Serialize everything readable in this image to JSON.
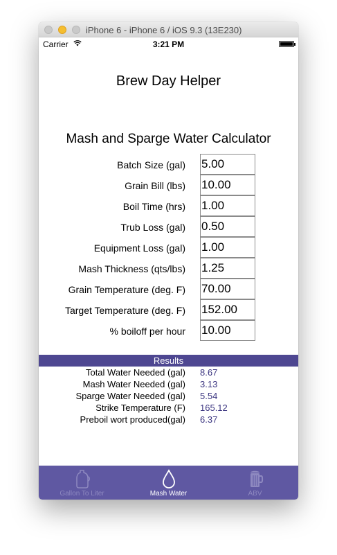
{
  "window": {
    "title": "iPhone 6 - iPhone 6 / iOS 9.3 (13E230)"
  },
  "status_bar": {
    "carrier": "Carrier",
    "time": "3:21 PM"
  },
  "app": {
    "title": "Brew Day Helper"
  },
  "calculator": {
    "title": "Mash and Sparge Water Calculator",
    "fields": [
      {
        "label": "Batch Size (gal)",
        "value": "5.00"
      },
      {
        "label": "Grain Bill (lbs)",
        "value": "10.00"
      },
      {
        "label": "Boil Time (hrs)",
        "value": "1.00"
      },
      {
        "label": "Trub Loss (gal)",
        "value": "0.50"
      },
      {
        "label": "Equipment Loss (gal)",
        "value": "1.00"
      },
      {
        "label": "Mash Thickness (qts/lbs)",
        "value": "1.25"
      },
      {
        "label": "Grain Temperature (deg. F)",
        "value": "70.00"
      },
      {
        "label": "Target Temperature (deg. F)",
        "value": "152.00"
      },
      {
        "label": "% boiloff per hour",
        "value": "10.00"
      }
    ]
  },
  "results": {
    "header": "Results",
    "rows": [
      {
        "label": "Total Water Needed (gal)",
        "value": "8.67"
      },
      {
        "label": "Mash Water Needed (gal)",
        "value": "3.13"
      },
      {
        "label": "Sparge Water Needed (gal)",
        "value": "5.54"
      },
      {
        "label": "Strike Temperature (F)",
        "value": "165.12"
      },
      {
        "label": "Preboil wort produced(gal)",
        "value": "6.37"
      }
    ]
  },
  "tab_bar": {
    "tabs": [
      {
        "label": "Gallon To Liter",
        "icon": "jug-icon",
        "active": false
      },
      {
        "label": "Mash Water",
        "icon": "water-drop-icon",
        "active": true
      },
      {
        "label": "ABV",
        "icon": "beer-mug-icon",
        "active": false
      }
    ]
  },
  "colors": {
    "results_header": "#4e4791",
    "tab_bar": "#5f58a2",
    "result_value": "#3b3580"
  }
}
